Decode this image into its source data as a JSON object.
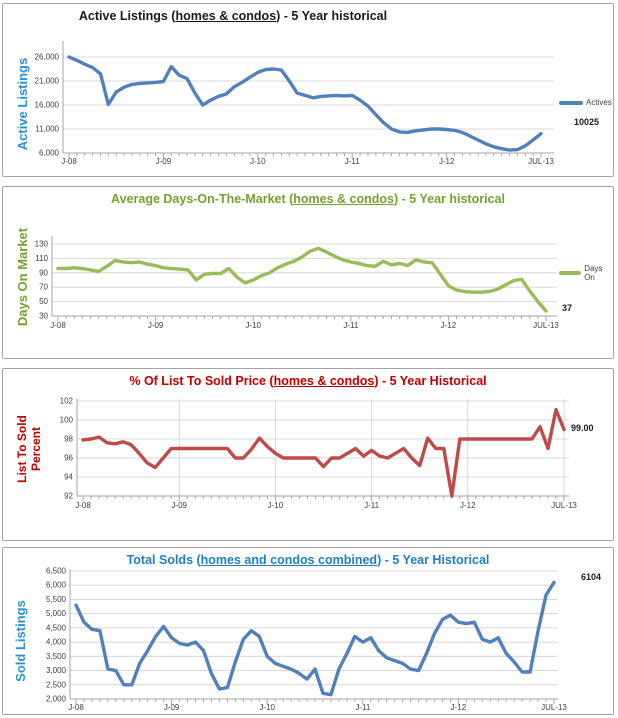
{
  "page": {
    "background": "#ffffff",
    "grid_color": "#d8d8d8",
    "axis_color": "#a6a6a6",
    "tick_text_color": "#3f3f3f"
  },
  "chart_data": [
    {
      "type": "line",
      "title": {
        "pre": "Active Listings (",
        "underline": "homes & condos",
        "post": ") - 5 Year historical"
      },
      "title_color": "#1a1a1a",
      "ylabel": {
        "line1": "Active Listings",
        "line2": ""
      },
      "ylabel_color": "#2b91cf",
      "legend": {
        "label": "Actives",
        "position": "right"
      },
      "end_label": "10025",
      "x_tick_labels": [
        "J-08",
        "J-09",
        "J-10",
        "J-11",
        "J-12",
        "JUL-13"
      ],
      "x_tick_indices": [
        0,
        12,
        24,
        36,
        48,
        60
      ],
      "y_tick_labels": [
        "6,000",
        "11,000",
        "16,000",
        "21,000",
        "26,000"
      ],
      "y_tick_values": [
        6000,
        11000,
        16000,
        21000,
        26000
      ],
      "ylim": [
        6000,
        26000
      ],
      "grid": {
        "horizontal": true,
        "vertical": false
      },
      "series": [
        {
          "name": "Actives",
          "color": "#4f81bd",
          "values": [
            26000,
            25300,
            24500,
            23800,
            22500,
            16100,
            18700,
            19700,
            20300,
            20500,
            20600,
            20700,
            20900,
            24000,
            22200,
            21500,
            18500,
            16000,
            17000,
            17800,
            18300,
            19800,
            20700,
            21800,
            22800,
            23400,
            23500,
            23300,
            21000,
            18500,
            18000,
            17500,
            17800,
            17900,
            18000,
            17900,
            18000,
            17000,
            15800,
            14000,
            12300,
            11000,
            10400,
            10300,
            10600,
            10800,
            11000,
            11000,
            10900,
            10700,
            10300,
            9500,
            8700,
            7900,
            7300,
            6900,
            6600,
            6700,
            7500,
            8700,
            10025
          ]
        }
      ]
    },
    {
      "type": "line",
      "title": {
        "pre": "Average Days-On-The-Market (",
        "underline": "homes & condos",
        "post": ") - 5 Year historical"
      },
      "title_color": "#76a032",
      "ylabel": {
        "line1": "Days On Market",
        "line2": ""
      },
      "ylabel_color": "#76a032",
      "legend": {
        "label": "Days On",
        "position": "right"
      },
      "end_label": "37",
      "x_tick_labels": [
        "J-08",
        "J-09",
        "J-10",
        "J-11",
        "J-12",
        "JUL-13"
      ],
      "x_tick_indices": [
        0,
        12,
        24,
        36,
        48,
        60
      ],
      "y_tick_labels": [
        "30",
        "50",
        "70",
        "90",
        "110",
        "130"
      ],
      "y_tick_values": [
        30,
        50,
        70,
        90,
        110,
        130
      ],
      "ylim": [
        30,
        130
      ],
      "grid": {
        "horizontal": true,
        "vertical": false
      },
      "series": [
        {
          "name": "Days On",
          "color": "#9bbb59",
          "values": [
            96,
            96,
            97,
            96,
            94,
            92,
            99,
            107,
            105,
            104,
            105,
            102,
            100,
            97,
            96,
            95,
            94,
            80,
            88,
            89,
            89,
            96,
            84,
            76,
            80,
            86,
            90,
            97,
            102,
            106,
            112,
            120,
            124,
            119,
            113,
            108,
            105,
            103,
            100,
            99,
            106,
            101,
            103,
            100,
            108,
            105,
            104,
            88,
            72,
            66,
            64,
            63,
            63,
            64,
            67,
            73,
            79,
            81,
            65,
            50,
            37
          ]
        }
      ]
    },
    {
      "type": "line",
      "title": {
        "pre": "% Of List To Sold Price (",
        "underline": "homes & condos",
        "post": ") - 5 Year Historical"
      },
      "title_color": "#c00000",
      "ylabel": {
        "line1": "List To Sold",
        "line2": "Percent"
      },
      "ylabel_color": "#c00000",
      "end_label": "99.00",
      "x_tick_labels": [
        "J-08",
        "J-09",
        "J-10",
        "J-11",
        "J-12",
        "JUL-13"
      ],
      "x_tick_indices": [
        0,
        12,
        24,
        36,
        48,
        60
      ],
      "y_tick_labels": [
        "92",
        "94",
        "96",
        "98",
        "100",
        "102"
      ],
      "y_tick_values": [
        92,
        94,
        96,
        98,
        100,
        102
      ],
      "ylim": [
        92,
        102
      ],
      "grid": {
        "horizontal": true,
        "vertical": true
      },
      "series": [
        {
          "name": "List To Sold %",
          "color": "#be4b48",
          "values": [
            97.9,
            98,
            98.2,
            97.6,
            97.5,
            97.7,
            97.4,
            96.5,
            95.5,
            95,
            96,
            97,
            97,
            97,
            97,
            97,
            97,
            97,
            97,
            96,
            96,
            96.9,
            98.1,
            97.2,
            96.5,
            96,
            96,
            96,
            96,
            96,
            95.1,
            96,
            96,
            96.5,
            97,
            96.2,
            96.8,
            96.2,
            96,
            96.5,
            97,
            96,
            95.2,
            98.1,
            97,
            97,
            92,
            98,
            98,
            98,
            98,
            98,
            98,
            98,
            98,
            98,
            98,
            99.3,
            97,
            101.1,
            99
          ]
        }
      ]
    },
    {
      "type": "line",
      "title": {
        "pre": "Total Solds (",
        "underline": "homes and condos combined",
        "post": ") - 5 Year Historical"
      },
      "title_color": "#2180c0",
      "ylabel": {
        "line1": "Sold Listings",
        "line2": ""
      },
      "ylabel_color": "#2b91cf",
      "end_label": "6104",
      "x_tick_labels": [
        "J-08",
        "J-09",
        "J-10",
        "J-11",
        "J-12",
        "JUL-13"
      ],
      "x_tick_indices": [
        0,
        12,
        24,
        36,
        48,
        60
      ],
      "y_tick_labels": [
        "2,000",
        "2,500",
        "3,000",
        "3,500",
        "4,000",
        "4,500",
        "5,000",
        "5,500",
        "6,000",
        "6,500"
      ],
      "y_tick_values": [
        2000,
        2500,
        3000,
        3500,
        4000,
        4500,
        5000,
        5500,
        6000,
        6500
      ],
      "ylim": [
        2000,
        6500
      ],
      "grid": {
        "horizontal": true,
        "vertical": false
      },
      "series": [
        {
          "name": "Total Solds",
          "color": "#4f81bd",
          "values": [
            5300,
            4700,
            4450,
            4400,
            3050,
            3000,
            2500,
            2500,
            3250,
            3700,
            4200,
            4550,
            4150,
            3950,
            3900,
            4000,
            3700,
            2900,
            2350,
            2400,
            3300,
            4100,
            4400,
            4200,
            3500,
            3250,
            3150,
            3050,
            2900,
            2700,
            3050,
            2200,
            2150,
            3050,
            3600,
            4200,
            4000,
            4150,
            3700,
            3450,
            3350,
            3250,
            3050,
            3000,
            3600,
            4300,
            4800,
            4950,
            4700,
            4650,
            4700,
            4100,
            4000,
            4150,
            3600,
            3300,
            2950,
            2950,
            4400,
            5650,
            6104
          ]
        }
      ]
    }
  ]
}
